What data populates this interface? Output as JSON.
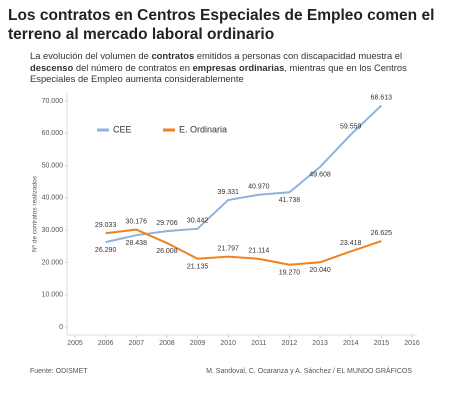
{
  "chart_data": {
    "type": "line",
    "title": "Los contratos en Centros Especiales de Empleo comen el terreno al mercado laboral ordinario",
    "subtitle": [
      "La evolución del volumen de ",
      "contratos",
      " emitidos a personas con discapacidad muestra el ",
      "descenso",
      " del número de contratos en ",
      "empresas ordinarias",
      ", mientras que en los Centros Especiales de Empleo aumenta considerablemente"
    ],
    "ylabel": "Nº de contratos realizados",
    "x": [
      2006,
      2007,
      2008,
      2009,
      2010,
      2011,
      2012,
      2013,
      2014,
      2015
    ],
    "xlim": [
      2005,
      2016
    ],
    "xticks": [
      2005,
      2006,
      2007,
      2008,
      2009,
      2010,
      2011,
      2012,
      2013,
      2014,
      2015,
      2016
    ],
    "ylim": [
      0,
      70000
    ],
    "yticks": [
      0,
      {
        "value": 10000,
        "label": "10.000"
      },
      {
        "value": 20000,
        "label": "20.000"
      },
      {
        "value": 30000,
        "label": "30.000"
      },
      {
        "value": 40000,
        "label": "40.000"
      },
      {
        "value": 50000,
        "label": "50.000"
      },
      {
        "value": 60000,
        "label": "60.000"
      },
      {
        "value": 70000,
        "label": "70.000"
      }
    ],
    "grid": false,
    "legend": "top-left",
    "series": [
      {
        "name": "CEE",
        "color": "#8fb3da",
        "values": [
          26290,
          28438,
          29706,
          30442,
          39331,
          40970,
          41738,
          49608,
          59559,
          68613
        ],
        "value_labels": [
          "26.290",
          "28.438",
          "29.706",
          "30.442",
          "39.331",
          "40.970",
          "41.738",
          "49.608",
          "59.559",
          "68.613"
        ]
      },
      {
        "name": "E. Ordinaria",
        "color": "#f0821e",
        "values": [
          29033,
          30176,
          26008,
          21135,
          21797,
          21114,
          19270,
          20040,
          23418,
          26625
        ],
        "value_labels": [
          "29.033",
          "30.176",
          "26.008",
          "21.135",
          "21.797",
          "21.114",
          "19.270",
          "20.040",
          "23.418",
          "26.625"
        ]
      }
    ],
    "source": "Fuente: ODISMET",
    "credit": "M. Sandoval, C. Ocaranza y A. Sánchez / EL MUNDO GRÁFICOS"
  }
}
